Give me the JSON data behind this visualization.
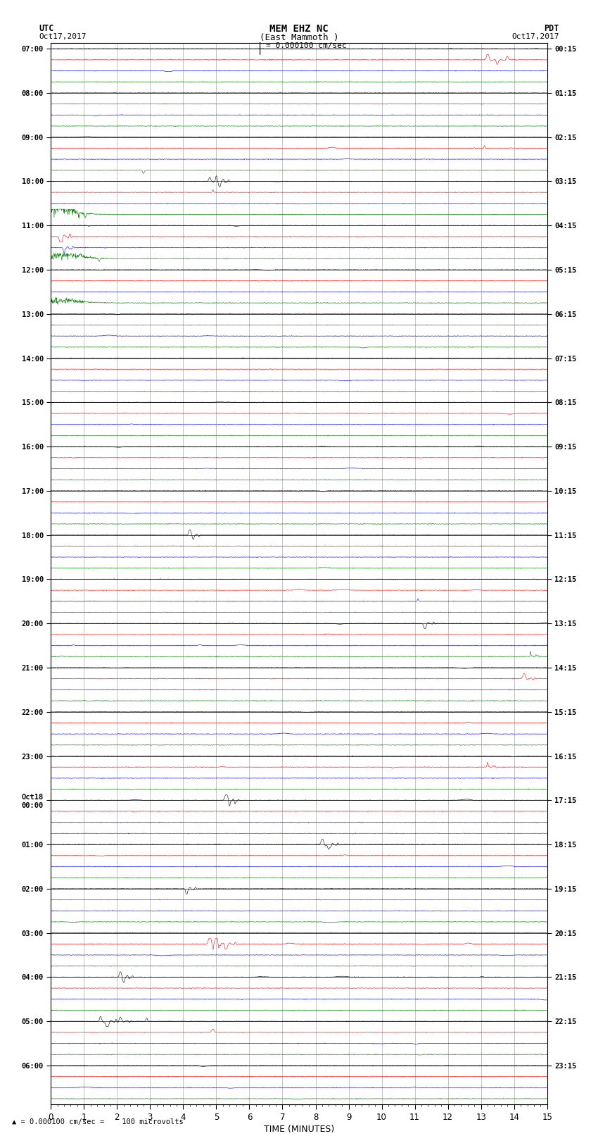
{
  "title_line1": "MEM EHZ NC",
  "title_line2": "(East Mammoth )",
  "scale_label": "= 0.000100 cm/sec",
  "label_left_top": "UTC",
  "label_left_date": "Oct17,2017",
  "label_right_top": "PDT",
  "label_right_date": "Oct17,2017",
  "xlabel": "TIME (MINUTES)",
  "bottom_note": "= 0.000100 cm/sec =    100 microvolts",
  "utc_labels": [
    "07:00",
    "08:00",
    "09:00",
    "10:00",
    "11:00",
    "12:00",
    "13:00",
    "14:00",
    "15:00",
    "16:00",
    "17:00",
    "18:00",
    "19:00",
    "20:00",
    "21:00",
    "22:00",
    "23:00",
    "Oct18\n00:00",
    "01:00",
    "02:00",
    "03:00",
    "04:00",
    "05:00",
    "06:00"
  ],
  "pdt_labels": [
    "00:15",
    "01:15",
    "02:15",
    "03:15",
    "04:15",
    "05:15",
    "06:15",
    "07:15",
    "08:15",
    "09:15",
    "10:15",
    "11:15",
    "12:15",
    "13:15",
    "14:15",
    "15:15",
    "16:15",
    "17:15",
    "18:15",
    "19:15",
    "20:15",
    "21:15",
    "22:15",
    "23:15"
  ],
  "colors": [
    "black",
    "red",
    "blue",
    "green"
  ],
  "bg_color": "#ffffff",
  "grid_color": "#888888",
  "n_hours": 24,
  "traces_per_hour": 4,
  "xmin": 0,
  "xmax": 15,
  "seed": 42
}
